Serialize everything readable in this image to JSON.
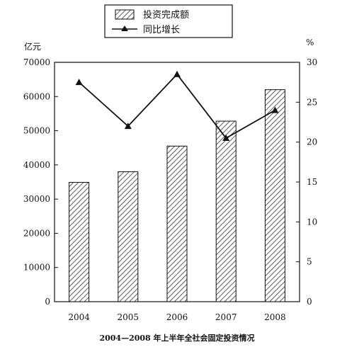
{
  "chart_data": {
    "type": "bar",
    "categories": [
      "2004",
      "2005",
      "2006",
      "2007",
      "2008"
    ],
    "series": [
      {
        "name": "投资完成额",
        "type": "bar",
        "axis": "left",
        "values": [
          34900,
          38000,
          45500,
          52800,
          62000
        ]
      },
      {
        "name": "同比增长",
        "type": "line",
        "axis": "right",
        "values": [
          27.5,
          22.0,
          28.5,
          20.5,
          24.0
        ]
      }
    ],
    "y_left": {
      "unit": "亿元",
      "ylim": [
        0,
        70000
      ],
      "ticks": [
        "0",
        "10000",
        "20000",
        "30000",
        "40000",
        "50000",
        "60000",
        "70000"
      ]
    },
    "y_right": {
      "unit": "%",
      "ylim": [
        0,
        30
      ],
      "ticks": [
        "0",
        "5",
        "10",
        "15",
        "20",
        "25",
        "30"
      ]
    },
    "caption": "2004—2008 年上半年全社会固定投资情况",
    "legend_position": "top-center",
    "grid": false
  }
}
